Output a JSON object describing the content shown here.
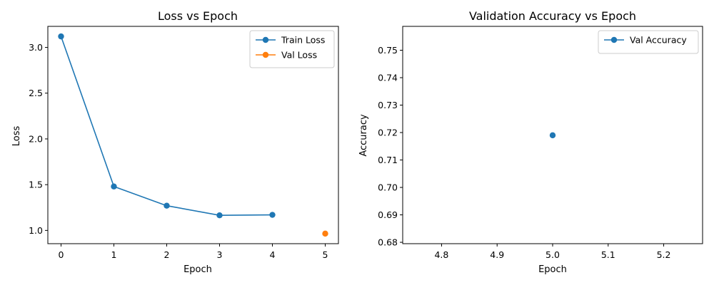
{
  "chart_data": [
    {
      "type": "line",
      "title": "Loss vs Epoch",
      "xlabel": "Epoch",
      "ylabel": "Loss",
      "xlim": [
        -0.25,
        5.25
      ],
      "ylim": [
        0.855,
        3.23
      ],
      "xticks": [
        0,
        1,
        2,
        3,
        4,
        5
      ],
      "yticks": [
        1.0,
        1.5,
        2.0,
        2.5,
        3.0
      ],
      "ytick_labels": [
        "1.0",
        "1.5",
        "2.0",
        "2.5",
        "3.0"
      ],
      "legend_position": "upper right",
      "series": [
        {
          "name": "Train Loss",
          "color": "#1f77b4",
          "x": [
            0,
            1,
            2,
            3,
            4
          ],
          "y": [
            3.12,
            1.48,
            1.27,
            1.165,
            1.17
          ]
        },
        {
          "name": "Val Loss",
          "color": "#ff7f0e",
          "x": [
            5
          ],
          "y": [
            0.965
          ]
        }
      ]
    },
    {
      "type": "line",
      "title": "Validation Accuracy vs Epoch",
      "xlabel": "Epoch",
      "ylabel": "Accuracy",
      "xlim": [
        4.73,
        5.27
      ],
      "ylim": [
        0.6795,
        0.7587
      ],
      "xticks": [
        4.8,
        4.9,
        5.0,
        5.1,
        5.2
      ],
      "xtick_labels": [
        "4.8",
        "4.9",
        "5.0",
        "5.1",
        "5.2"
      ],
      "yticks": [
        0.68,
        0.69,
        0.7,
        0.71,
        0.72,
        0.73,
        0.74,
        0.75
      ],
      "ytick_labels": [
        "0.68",
        "0.69",
        "0.70",
        "0.71",
        "0.72",
        "0.73",
        "0.74",
        "0.75"
      ],
      "legend_position": "upper right",
      "series": [
        {
          "name": "Val Accuracy",
          "color": "#1f77b4",
          "x": [
            5.0
          ],
          "y": [
            0.719
          ]
        }
      ]
    }
  ]
}
